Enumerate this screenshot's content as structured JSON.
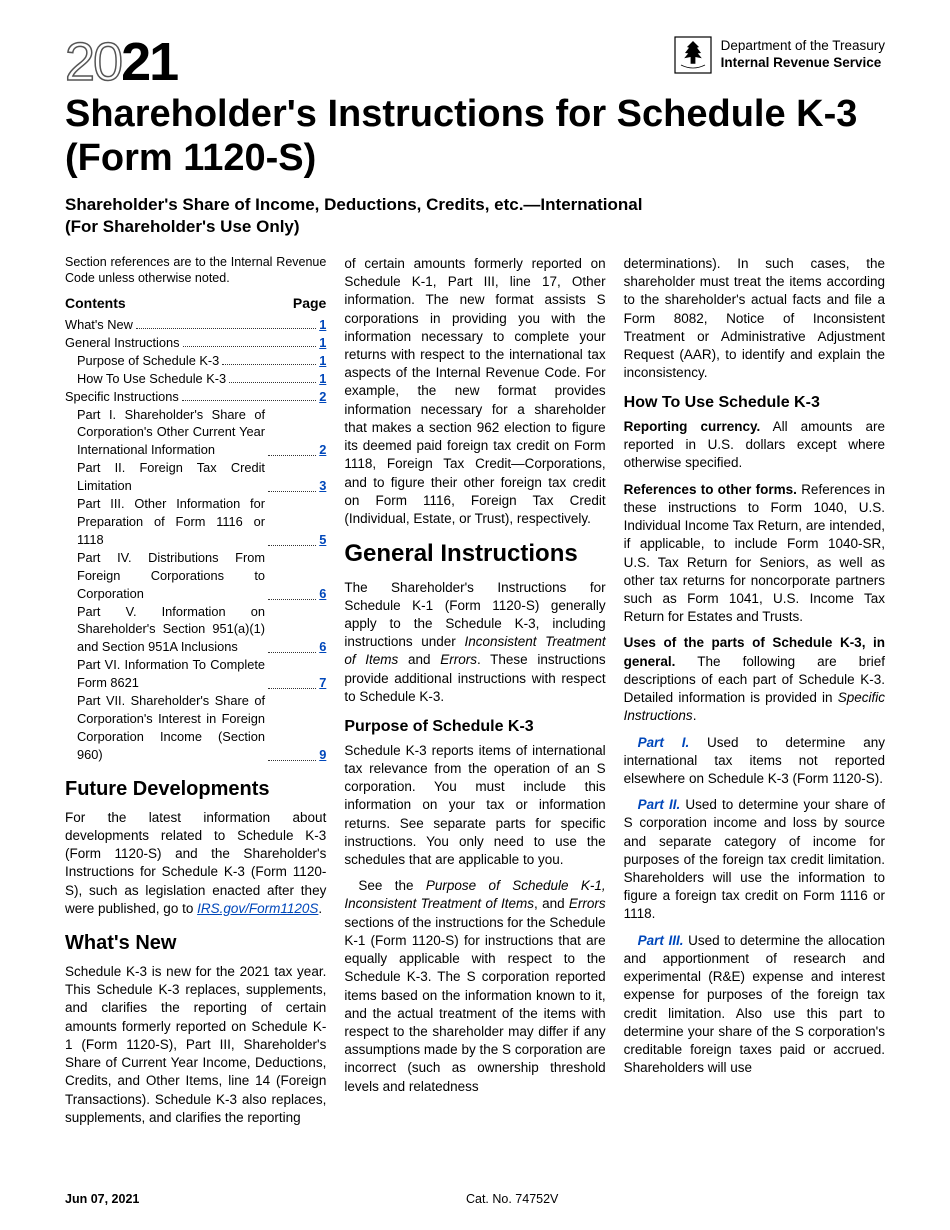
{
  "year_prefix": "20",
  "year_suffix": "21",
  "dept_line1": "Department of the Treasury",
  "dept_line2": "Internal Revenue Service",
  "main_title": "Shareholder's Instructions for Schedule K-3 (Form 1120-S)",
  "subtitle_l1": "Shareholder's Share of Income, Deductions, Credits, etc.—International",
  "subtitle_l2": "(For Shareholder's Use Only)",
  "section_ref": "Section references are to the Internal Revenue Code unless otherwise noted.",
  "contents_label": "Contents",
  "page_label": "Page",
  "toc": [
    {
      "label": "What's New",
      "page": "1",
      "indent": 0
    },
    {
      "label": "General Instructions",
      "page": "1",
      "indent": 0
    },
    {
      "label": "Purpose of Schedule K-3",
      "page": "1",
      "indent": 1
    },
    {
      "label": "How To Use Schedule K-3",
      "page": "1",
      "indent": 1
    },
    {
      "label": "Specific Instructions",
      "page": "2",
      "indent": 0
    },
    {
      "label": "Part I. Shareholder's Share of Corporation's Other Current Year International Information",
      "page": "2",
      "indent": 1,
      "multi": true
    },
    {
      "label": "Part II. Foreign Tax Credit Limitation",
      "page": "3",
      "indent": 1,
      "multi": true
    },
    {
      "label": "Part III. Other Information for Preparation of Form 1116 or 1118",
      "page": "5",
      "indent": 1,
      "multi": true
    },
    {
      "label": "Part IV. Distributions From Foreign Corporations to Corporation",
      "page": "6",
      "indent": 1,
      "multi": true
    },
    {
      "label": "Part V. Information on Shareholder's Section 951(a)(1) and Section 951A Inclusions",
      "page": "6",
      "indent": 1,
      "multi": true
    },
    {
      "label": "Part VI. Information To Complete Form 8621",
      "page": "7",
      "indent": 1,
      "multi": true
    },
    {
      "label": "Part VII. Shareholder's Share of Corporation's Interest in Foreign Corporation Income (Section 960)",
      "page": "9",
      "indent": 1,
      "multi": true
    }
  ],
  "future_dev_h": "Future Developments",
  "future_dev_p": "For the latest information about developments related to Schedule K-3 (Form 1120-S) and the Shareholder's Instructions for Schedule K-3 (Form 1120-S), such as legislation enacted after they were published, go to ",
  "future_dev_link": "IRS.gov/Form1120S",
  "whats_new_h": "What's New",
  "whats_new_p": "Schedule K-3 is new for the 2021 tax year. This Schedule K-3 replaces, supplements, and clarifies the reporting of certain amounts formerly reported on Schedule K-1 (Form 1120-S), Part III, Shareholder's Share of Current Year Income, Deductions, Credits, and Other Items, line 14 (Foreign Transactions). Schedule K-3 also replaces, supplements, and clarifies the reporting",
  "col2_top": "of certain amounts formerly reported on Schedule K-1, Part III, line 17, Other information. The new format assists S corporations in providing you with the information necessary to complete your returns with respect to the international tax aspects of the Internal Revenue Code. For example, the new format provides information necessary for a shareholder that makes a section 962 election to figure its deemed paid foreign tax credit on Form 1118, Foreign Tax Credit—Corporations, and to figure their other foreign tax credit on Form 1116, Foreign Tax Credit (Individual, Estate, or Trust), respectively.",
  "gen_instr_h": "General Instructions",
  "gen_instr_p1a": "The Shareholder's Instructions for Schedule K-1 (Form 1120-S) generally apply to the Schedule K-3, including instructions under ",
  "gen_instr_p1b": "Inconsistent Treatment of Items",
  "gen_instr_p1c": " and ",
  "gen_instr_p1d": "Errors",
  "gen_instr_p1e": ". These instructions provide additional instructions with respect to Schedule K-3.",
  "purpose_h": "Purpose of Schedule K-3",
  "purpose_p1": "Schedule K-3 reports items of international tax relevance from the operation of an S corporation. You must include this information on your tax or information returns. See separate parts for specific instructions. You only need to use the schedules that are applicable to you.",
  "purpose_p2a": "See the ",
  "purpose_p2b": "Purpose of Schedule K-1, Inconsistent Treatment of Items",
  "purpose_p2c": ", and ",
  "purpose_p2d": "Errors",
  "purpose_p2e": " sections of the instructions for the Schedule K-1 (Form 1120-S) for instructions that are equally applicable with respect to the Schedule K-3. The S corporation reported items based on the information known to it, and the actual treatment of the items with respect to the shareholder may differ if any assumptions made by the S corporation are incorrect (such as ownership threshold levels and relatedness",
  "col3_top": "determinations). In such cases, the shareholder must treat the items according to the shareholder's actual facts and file a Form 8082, Notice of Inconsistent Treatment or Administrative Adjustment Request (AAR), to identify and explain the inconsistency.",
  "howto_h": "How To Use Schedule K-3",
  "reporting_label": "Reporting currency.",
  "reporting_text": " All amounts are reported in U.S. dollars except where otherwise specified.",
  "refs_label": "References to other forms.",
  "refs_text": "References in these instructions to Form 1040, U.S. Individual Income Tax Return, are intended, if applicable, to include Form 1040-SR, U.S. Tax Return for Seniors, as well as other tax returns for noncorporate partners such as Form 1041, U.S. Income Tax Return for Estates and Trusts.",
  "uses_label": "Uses of the parts of Schedule K-3, in general.",
  "uses_text_a": " The following are brief descriptions of each part of Schedule K-3. Detailed information is provided in ",
  "uses_text_b": "Specific Instructions",
  "part1_label": "Part I.",
  "part1_text": " Used to determine any international tax items not reported elsewhere on Schedule K-3 (Form 1120-S).",
  "part2_label": "Part II.",
  "part2_text": " Used to determine your share of S corporation income and loss by source and separate category of income for purposes of the foreign tax credit limitation. Shareholders will use the information to figure a foreign tax credit on Form 1116 or 1118.",
  "part3_label": "Part III.",
  "part3_text": " Used to determine the allocation and apportionment of research and experimental (R&E) expense and interest expense for purposes of the foreign tax credit limitation. Also use this part to determine your share of the S corporation's creditable foreign taxes paid or accrued. Shareholders will use",
  "footer_date": "Jun 07, 2021",
  "footer_cat": "Cat. No. 74752V"
}
